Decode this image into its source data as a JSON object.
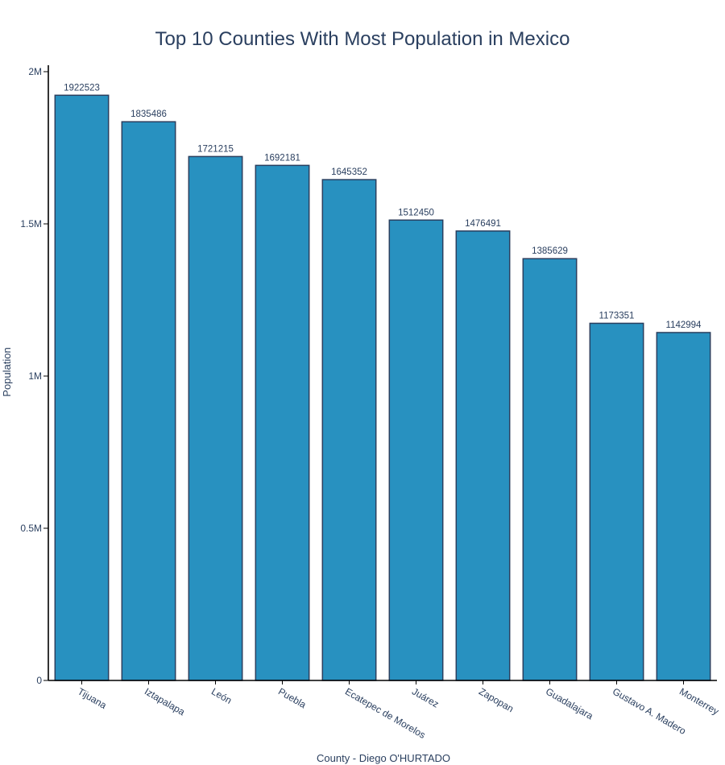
{
  "chart_data": {
    "type": "bar",
    "title": "Top 10 Counties With Most Population in Mexico",
    "xlabel": "County - Diego O'HURTADO",
    "ylabel": "Population",
    "categories": [
      "Tijuana",
      "Iztapalapa",
      "León",
      "Puebla",
      "Ecatepec de Morelos",
      "Juárez",
      "Zapopan",
      "Guadalajara",
      "Gustavo A. Madero",
      "Monterrey"
    ],
    "values": [
      1922523,
      1835486,
      1721215,
      1692181,
      1645352,
      1512450,
      1476491,
      1385629,
      1173351,
      1142994
    ],
    "data_labels": [
      "1922523",
      "1835486",
      "1721215",
      "1692181",
      "1645352",
      "1512450",
      "1476491",
      "1385629",
      "1173351",
      "1142994"
    ],
    "ylim": [
      0,
      2000000
    ],
    "yticks": [
      0,
      500000,
      1000000,
      1500000,
      2000000
    ],
    "ytick_labels": [
      "0",
      "0.5M",
      "1M",
      "1.5M",
      "2M"
    ],
    "grid": false,
    "bar_color": "#2891c0",
    "bar_edge_color": "#2a3f5f"
  }
}
